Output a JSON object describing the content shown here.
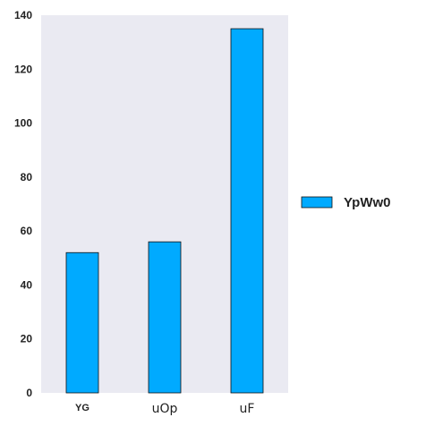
{
  "chart_data": {
    "type": "bar",
    "title": "",
    "xlabel": "",
    "ylabel": "",
    "categories": [
      "YG",
      "uOp",
      "uF"
    ],
    "series": [
      {
        "name": "YpWw0",
        "values": [
          52,
          56,
          135
        ]
      }
    ],
    "ylim": [
      0,
      140
    ],
    "yticks": [
      0,
      20,
      40,
      60,
      80,
      100,
      120,
      140
    ],
    "grid": false,
    "legend_position": "right",
    "colors": {
      "bar": "#00aaff",
      "bar_edge": "#111111",
      "plot_background": "#eaeaf2"
    }
  }
}
